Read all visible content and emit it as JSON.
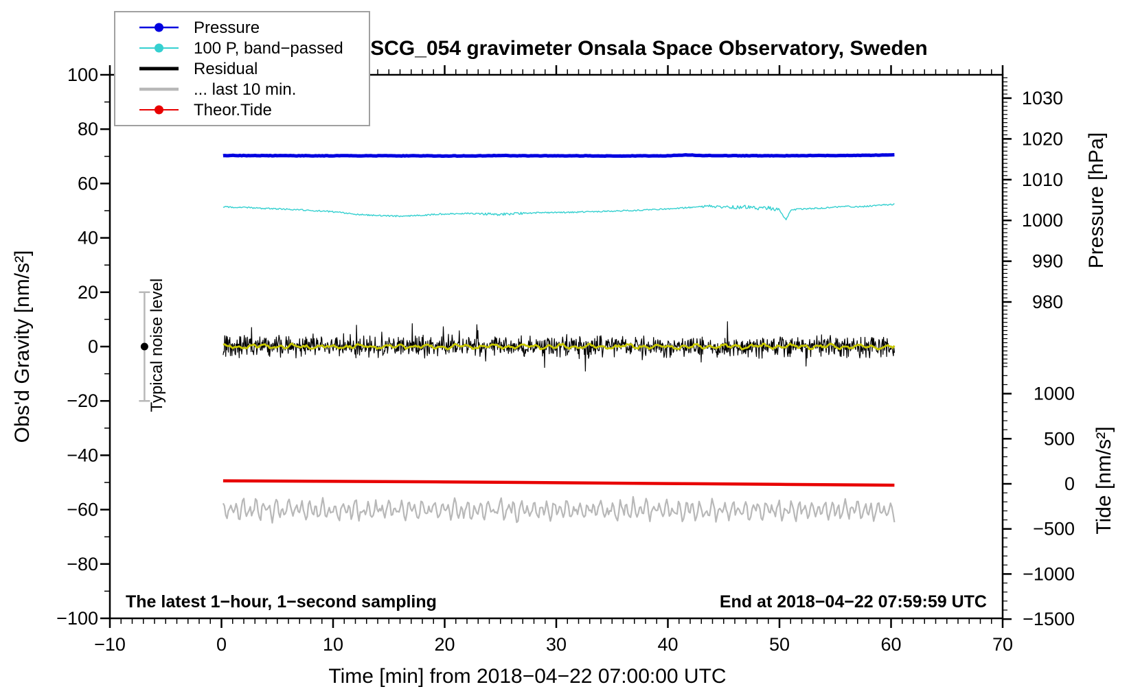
{
  "chart_data": {
    "type": "line",
    "title": "SCG_054 gravimeter Onsala Space Observatory, Sweden",
    "xlabel": "Time [min] from 2018−04−22 07:00:00 UTC",
    "x_range": [
      -10,
      70
    ],
    "x_major_ticks": [
      -10,
      0,
      10,
      20,
      30,
      40,
      50,
      60,
      70
    ],
    "x_minor_step": 1,
    "grid": "off",
    "left_axis": {
      "label": "Obs'd Gravity [nm/s²]",
      "range": [
        -100,
        100
      ],
      "major_ticks": [
        100,
        80,
        60,
        40,
        20,
        0,
        -20,
        -40,
        -60,
        -80,
        -100
      ],
      "minor_step": 10
    },
    "right_axis_pressure": {
      "label": "Pressure [hPa]",
      "major_ticks": [
        1030,
        1020,
        1010,
        1000,
        990,
        980
      ],
      "minor_step": 1
    },
    "right_axis_tide": {
      "label": "Tide [nm/s²]",
      "major_ticks": [
        1000,
        500,
        0,
        -500,
        -1000,
        -1500
      ],
      "minor_step": 100
    },
    "annotations": {
      "sampling_note": "The latest 1−hour, 1−second sampling",
      "end_note": "End at 2018−04−22 07:59:59 UTC",
      "noise_label": "Typical noise level",
      "noise_bar": {
        "t": -6.9,
        "center_value": 0,
        "half_range": 20
      }
    },
    "legend": {
      "position": "top-left",
      "items": [
        {
          "label": "Pressure",
          "color": "#0000e0",
          "style": "line-dot",
          "width": 2.5
        },
        {
          "label": "100 P, band−passed",
          "color": "#35d0d0",
          "style": "line-dot",
          "width": 2
        },
        {
          "label": "Residual",
          "color": "#000000",
          "style": "line",
          "width": 5
        },
        {
          "label": "... last 10 min.",
          "color": "#b8b8b8",
          "style": "line",
          "width": 4.5
        },
        {
          "label": "Theor.Tide",
          "color": "#e80000",
          "style": "line-dot",
          "width": 2
        }
      ]
    },
    "series": [
      {
        "name": "Residual",
        "color": "#000000",
        "width": 1.2,
        "gen": "noise",
        "mean": 0,
        "typical_amplitude": 3.5,
        "peak_amplitude": 8,
        "t_range": [
          0.15,
          60.3
        ]
      },
      {
        "name": "Residual smoothed",
        "color": "#c8c800",
        "width": 2.8,
        "gen": "smooth",
        "mean": 0,
        "amplitude": 0.9,
        "t_range": [
          0.15,
          60.3
        ]
      },
      {
        "name": "... last 10 min.",
        "color": "#b8b8b8",
        "width": 2.2,
        "gen": "wave",
        "mean": -60.2,
        "amplitude": 4.2,
        "t_range": [
          0.15,
          60.3
        ]
      },
      {
        "name": "Theor.Tide",
        "color": "#e80000",
        "width": 4.5,
        "points": [
          [
            0.15,
            -49.4
          ],
          [
            10,
            -49.6
          ],
          [
            20,
            -49.8
          ],
          [
            30,
            -50.1
          ],
          [
            40,
            -50.4
          ],
          [
            50,
            -50.7
          ],
          [
            60.3,
            -51.0
          ]
        ]
      },
      {
        "name": "100 P, band−passed",
        "color": "#35d0d0",
        "width": 1.4,
        "jitter": 0.25,
        "jitter_regions": [
          [
            23,
            27,
            0.5
          ],
          [
            43,
            50,
            0.65
          ]
        ],
        "points": [
          [
            0.15,
            51.4
          ],
          [
            1,
            51.3
          ],
          [
            2,
            51.2
          ],
          [
            3,
            51.0
          ],
          [
            4,
            50.8
          ],
          [
            5,
            50.7
          ],
          [
            6,
            50.5
          ],
          [
            7,
            50.3
          ],
          [
            8,
            50.1
          ],
          [
            9,
            49.9
          ],
          [
            10,
            49.6
          ],
          [
            11,
            49.2
          ],
          [
            12,
            48.7
          ],
          [
            13,
            48.4
          ],
          [
            14,
            48.2
          ],
          [
            15,
            48.1
          ],
          [
            16,
            48.0
          ],
          [
            17,
            48.1
          ],
          [
            18,
            48.3
          ],
          [
            19,
            48.6
          ],
          [
            20,
            48.8
          ],
          [
            21,
            48.9
          ],
          [
            22,
            49.0
          ],
          [
            23,
            48.9
          ],
          [
            24,
            48.8
          ],
          [
            25,
            48.6
          ],
          [
            26,
            48.9
          ],
          [
            27,
            49.1
          ],
          [
            28,
            49.2
          ],
          [
            29,
            49.3
          ],
          [
            30,
            49.3
          ],
          [
            31,
            49.4
          ],
          [
            32,
            49.5
          ],
          [
            33,
            49.6
          ],
          [
            34,
            49.7
          ],
          [
            35,
            49.8
          ],
          [
            36,
            50.0
          ],
          [
            37,
            50.1
          ],
          [
            38,
            50.3
          ],
          [
            39,
            50.5
          ],
          [
            40,
            50.6
          ],
          [
            41,
            50.9
          ],
          [
            42,
            51.2
          ],
          [
            43,
            51.5
          ],
          [
            44,
            51.7
          ],
          [
            45,
            51.5
          ],
          [
            46,
            51.2
          ],
          [
            47,
            51.4
          ],
          [
            48,
            50.8
          ],
          [
            49,
            51.0
          ],
          [
            50,
            50.2
          ],
          [
            50.6,
            46.5
          ],
          [
            51,
            50.3
          ],
          [
            52,
            50.6
          ],
          [
            53,
            50.8
          ],
          [
            54,
            51.0
          ],
          [
            55,
            51.3
          ],
          [
            56,
            51.6
          ],
          [
            57,
            51.4
          ],
          [
            58,
            51.7
          ],
          [
            59,
            52.0
          ],
          [
            60.3,
            52.4
          ]
        ]
      },
      {
        "name": "Pressure",
        "color": "#0000e0",
        "width": 5,
        "right_axis_value_hpa": 1016,
        "points": [
          [
            0.15,
            70.3
          ],
          [
            5,
            70.25
          ],
          [
            10,
            70.2
          ],
          [
            15,
            70.2
          ],
          [
            20,
            70.15
          ],
          [
            24,
            70.2
          ],
          [
            25,
            70.35
          ],
          [
            26,
            70.2
          ],
          [
            30,
            70.2
          ],
          [
            35,
            70.15
          ],
          [
            40,
            70.2
          ],
          [
            41,
            70.45
          ],
          [
            42,
            70.5
          ],
          [
            43,
            70.3
          ],
          [
            45,
            70.25
          ],
          [
            50,
            70.2
          ],
          [
            54,
            70.3
          ],
          [
            55,
            70.25
          ],
          [
            58,
            70.4
          ],
          [
            60.3,
            70.5
          ]
        ]
      }
    ]
  }
}
